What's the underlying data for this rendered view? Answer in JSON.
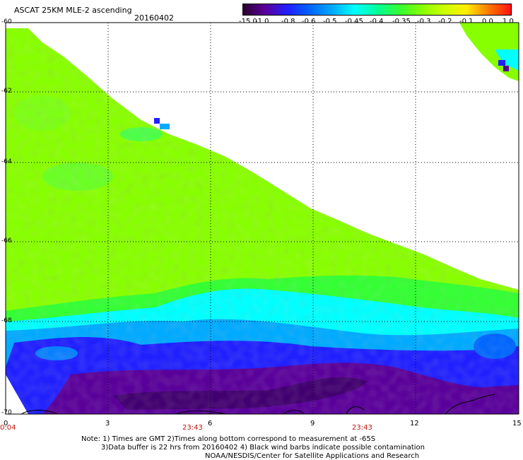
{
  "header": {
    "title": "ASCAT 25KM MLE-2 ascending",
    "date": "20160402"
  },
  "colorbar": {
    "labels": [
      "-15.0",
      "-1.0",
      "-0.8",
      "-0.6",
      "-0.5",
      "-0.45",
      "-0.4",
      "-0.35",
      "-0.3",
      "-0.2",
      "-0.1",
      "0.0",
      "1.0"
    ],
    "colors": [
      "#2a0030",
      "#5a009a",
      "#2020ff",
      "#0066ff",
      "#00aaff",
      "#00ffff",
      "#00ff99",
      "#33ff33",
      "#88ff00",
      "#ccff00",
      "#ffee00",
      "#ff7700",
      "#ff1111"
    ]
  },
  "axes": {
    "y_labels": [
      "-60",
      "-62",
      "-64",
      "-66",
      "-68",
      "-70"
    ],
    "x_labels": [
      "0",
      "3",
      "6",
      "9",
      "12",
      "15"
    ],
    "time_labels": [
      "0:04",
      "23:43",
      "23:43"
    ]
  },
  "footer": {
    "note1": "Note: 1) Times are GMT 2)Times along bottom correspond to measurement at -65S",
    "note2": "3)Data buffer is 22 hrs from 20160402 4) Black wind barbs indicate possible contamination",
    "credit": "NOAA/NESDIS/Center for Satellite Applications and Research"
  }
}
